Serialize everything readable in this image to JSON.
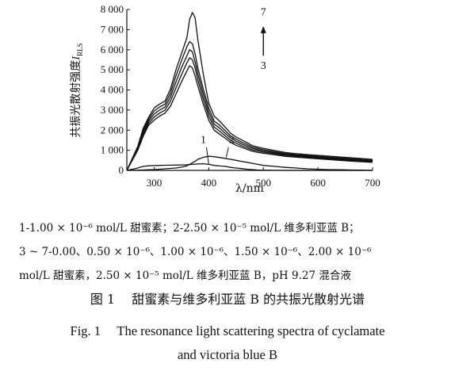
{
  "chart_data": {
    "type": "line",
    "xlabel": "λ/nm",
    "ylabel": "共振光散射强度",
    "ylabel_symbol": "I",
    "ylabel_subscript": "RLS",
    "xlim": [
      250,
      700
    ],
    "ylim": [
      0,
      8000
    ],
    "xticks": [
      300,
      400,
      500,
      600,
      700
    ],
    "yticks": [
      0,
      1000,
      2000,
      3000,
      4000,
      5000,
      6000,
      7000,
      8000
    ],
    "ytick_labels": [
      "0",
      "1 000",
      "2 000",
      "3 000",
      "4 000",
      "5 000",
      "6 000",
      "7 000",
      "8 000"
    ],
    "grid": false,
    "legend": "none",
    "x": [
      250,
      270,
      280,
      290,
      300,
      310,
      320,
      330,
      340,
      350,
      360,
      365,
      370,
      375,
      380,
      390,
      400,
      410,
      420,
      430,
      440,
      450,
      460,
      470,
      480,
      490,
      500,
      520,
      540,
      560,
      580,
      600,
      620,
      640,
      660,
      680,
      700
    ],
    "series": [
      {
        "name": "1",
        "values": [
          0,
          120,
          200,
          230,
          240,
          250,
          255,
          260,
          265,
          270,
          280,
          290,
          300,
          310,
          320,
          330,
          300,
          250,
          220,
          200,
          150,
          120,
          90,
          60,
          40,
          20,
          10,
          5,
          0,
          0,
          0,
          0,
          0,
          0,
          0,
          0,
          0
        ]
      },
      {
        "name": "2",
        "values": [
          0,
          10,
          20,
          30,
          40,
          60,
          80,
          100,
          120,
          160,
          230,
          300,
          380,
          450,
          550,
          650,
          700,
          680,
          640,
          600,
          550,
          500,
          450,
          400,
          350,
          300,
          250,
          200,
          150,
          120,
          80,
          60,
          40,
          30,
          20,
          10,
          0
        ]
      },
      {
        "name": "3",
        "values": [
          0,
          1000,
          1700,
          2250,
          2500,
          2700,
          2850,
          3200,
          3800,
          4400,
          4950,
          5200,
          5100,
          4700,
          4200,
          3300,
          2500,
          2000,
          1800,
          1600,
          1400,
          1250,
          1150,
          1050,
          950,
          900,
          850,
          780,
          700,
          660,
          620,
          580,
          540,
          500,
          460,
          430,
          400
        ]
      },
      {
        "name": "4",
        "values": [
          0,
          1050,
          1800,
          2350,
          2650,
          2850,
          3000,
          3450,
          4100,
          4750,
          5350,
          5600,
          5500,
          5100,
          4500,
          3550,
          2700,
          2150,
          1950,
          1720,
          1500,
          1350,
          1230,
          1130,
          1020,
          970,
          910,
          830,
          750,
          700,
          660,
          620,
          580,
          540,
          500,
          470,
          440
        ]
      },
      {
        "name": "5",
        "values": [
          0,
          1100,
          1900,
          2450,
          2800,
          3000,
          3150,
          3650,
          4400,
          5100,
          5700,
          6000,
          5900,
          5400,
          4800,
          3800,
          2900,
          2300,
          2100,
          1850,
          1610,
          1450,
          1320,
          1210,
          1090,
          1030,
          970,
          880,
          800,
          740,
          700,
          660,
          620,
          580,
          540,
          500,
          470
        ]
      },
      {
        "name": "6",
        "values": [
          0,
          1150,
          2000,
          2550,
          2950,
          3150,
          3300,
          3850,
          4700,
          5450,
          6150,
          6400,
          6300,
          5800,
          5100,
          4050,
          3100,
          2450,
          2250,
          1980,
          1720,
          1550,
          1410,
          1290,
          1160,
          1090,
          1030,
          930,
          840,
          780,
          740,
          700,
          660,
          620,
          580,
          540,
          500
        ]
      },
      {
        "name": "7",
        "values": [
          0,
          1200,
          2100,
          2650,
          3100,
          3300,
          3450,
          4050,
          5000,
          5800,
          6600,
          7500,
          7850,
          7600,
          6500,
          4800,
          3350,
          2700,
          2450,
          2150,
          1850,
          1660,
          1520,
          1380,
          1230,
          1160,
          1100,
          990,
          890,
          830,
          790,
          750,
          710,
          670,
          630,
          590,
          550
        ]
      }
    ],
    "annotations": [
      {
        "text": "1",
        "x": 390,
        "y": 1350
      },
      {
        "text": "2",
        "x": 442,
        "y": 1350
      },
      {
        "text": "7",
        "x": 500,
        "y": 7700
      },
      {
        "text": "3",
        "x": 500,
        "y": 5050
      }
    ],
    "arrow": {
      "from_y": 5700,
      "to_y": 7100,
      "x": 500
    }
  },
  "captions": {
    "line1": "1-1.00 × 10⁻⁶ mol/L 甜蜜素；2-2.50 × 10⁻⁵ mol/L 维多利亚蓝 B；",
    "line2": "3 ~ 7-0.00、0.50 × 10⁻⁶、1.00 × 10⁻⁶、1.50 × 10⁻⁶、2.00 × 10⁻⁶",
    "line3": "mol/L 甜蜜素，2.50 × 10⁻⁵ mol/L 维多利亚蓝 B，pH 9.27 混合液",
    "figure_title_cn": "图 1　 甜蜜素与维多利亚蓝 B 的共振光散射光谱",
    "figure_title_en_1": "Fig. 1　 The resonance light scattering spectra of cyclamate",
    "figure_title_en_2": "and victoria blue B"
  }
}
